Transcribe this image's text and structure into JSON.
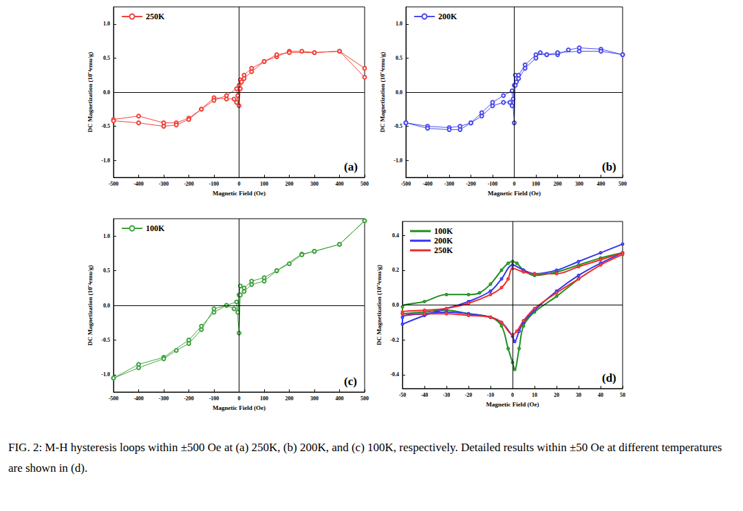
{
  "caption": "FIG. 2: M-H hysteresis loops within ±500 Oe at (a) 250K, (b) 200K, and (c) 100K, respectively. Detailed results within ±50 Oe at different temperatures are shown in (d).",
  "chart_data": [
    {
      "type": "line",
      "annotation": "(a)",
      "x_label": "Magnetic Field (Oe)",
      "y_label": "DC Magnetization (10⁻⁴emu/g)",
      "xlim": [
        -500,
        500
      ],
      "ylim": [
        -1.25,
        1.25
      ],
      "xticks": [
        -500,
        -400,
        -300,
        -200,
        -100,
        0,
        100,
        200,
        300,
        400,
        500
      ],
      "yticks": [
        {
          "value": -1,
          "label": "-1.0"
        },
        -0.5,
        {
          "value": 0,
          "label": "0.0"
        },
        0.5,
        {
          "value": 1,
          "label": "1.0"
        }
      ],
      "grid": false,
      "legend": "upper left",
      "marker": "circle",
      "line_style": "solid",
      "series": [
        {
          "name": "250K",
          "color": "#f0413a",
          "x": [
            500,
            400,
            300,
            250,
            200,
            150,
            100,
            50,
            20,
            5,
            0,
            -5,
            -10,
            -20,
            -50,
            -100,
            -150,
            -200,
            -250,
            -300,
            -400,
            -500,
            -500,
            -400,
            -300,
            -250,
            -200,
            -150,
            -100,
            -50,
            -10,
            0,
            5,
            10,
            20,
            50,
            100,
            150,
            200,
            300,
            400,
            500
          ],
          "values": [
            0.35,
            0.6,
            0.58,
            0.6,
            0.6,
            0.52,
            0.45,
            0.3,
            0.2,
            0.18,
            0.1,
            -0.05,
            -0.15,
            -0.1,
            -0.1,
            -0.08,
            -0.25,
            -0.38,
            -0.45,
            -0.45,
            -0.35,
            -0.4,
            -0.42,
            -0.45,
            -0.5,
            -0.48,
            -0.4,
            -0.25,
            -0.12,
            -0.05,
            0.05,
            -0.2,
            0.05,
            0.15,
            0.25,
            0.35,
            0.45,
            0.55,
            0.58,
            0.58,
            0.6,
            0.22
          ]
        }
      ]
    },
    {
      "type": "line",
      "annotation": "(b)",
      "x_label": "Magnetic Field (Oe)",
      "y_label": "DC Magnetization (10⁻⁴emu/g)",
      "xlim": [
        -500,
        500
      ],
      "ylim": [
        -1.25,
        1.25
      ],
      "xticks": [
        -500,
        -400,
        -300,
        -200,
        -100,
        0,
        100,
        200,
        300,
        400,
        500
      ],
      "yticks": [
        {
          "value": -1,
          "label": "-1.0"
        },
        -0.5,
        {
          "value": 0,
          "label": "0.0"
        },
        0.5,
        {
          "value": 1,
          "label": "1.0"
        }
      ],
      "grid": false,
      "legend": "upper left",
      "marker": "circle",
      "line_style": "solid",
      "series": [
        {
          "name": "200K",
          "color": "#4a4af0",
          "x": [
            500,
            400,
            300,
            250,
            200,
            150,
            120,
            100,
            50,
            20,
            5,
            0,
            -5,
            -10,
            -20,
            -50,
            -100,
            -150,
            -200,
            -250,
            -300,
            -400,
            -500,
            -500,
            -400,
            -300,
            -250,
            -200,
            -150,
            -100,
            -50,
            -10,
            0,
            5,
            10,
            20,
            50,
            100,
            150,
            200,
            300,
            400,
            500
          ],
          "values": [
            0.55,
            0.63,
            0.65,
            0.62,
            0.55,
            0.55,
            0.58,
            0.5,
            0.35,
            0.2,
            0.25,
            0.1,
            -0.1,
            -0.2,
            -0.15,
            -0.15,
            -0.2,
            -0.35,
            -0.45,
            -0.5,
            -0.52,
            -0.5,
            -0.45,
            -0.45,
            -0.53,
            -0.55,
            -0.55,
            -0.45,
            -0.3,
            -0.15,
            -0.05,
            0.02,
            -0.45,
            0.1,
            0.15,
            0.25,
            0.4,
            0.55,
            0.55,
            0.58,
            0.6,
            0.6,
            0.55
          ]
        }
      ]
    },
    {
      "type": "line",
      "annotation": "(c)",
      "x_label": "Magnetic Field (Oe)",
      "y_label": "DC Magnetization (10⁻⁴emu/g)",
      "xlim": [
        -500,
        500
      ],
      "ylim": [
        -1.25,
        1.25
      ],
      "xticks": [
        -500,
        -400,
        -300,
        -200,
        -100,
        0,
        100,
        200,
        300,
        400,
        500
      ],
      "yticks": [
        {
          "value": -1,
          "label": "-1.0"
        },
        -0.5,
        {
          "value": 0,
          "label": "0.0"
        },
        0.5,
        {
          "value": 1,
          "label": "1.0"
        }
      ],
      "grid": false,
      "legend": "upper left",
      "marker": "circle",
      "line_style": "solid",
      "series": [
        {
          "name": "100K",
          "color": "#3fa33f",
          "x": [
            500,
            400,
            300,
            250,
            150,
            100,
            50,
            20,
            5,
            0,
            -5,
            -20,
            -50,
            -100,
            -150,
            -200,
            -300,
            -400,
            -500,
            -500,
            -400,
            -300,
            -250,
            -200,
            -150,
            -100,
            -50,
            -10,
            0,
            5,
            20,
            50,
            100,
            150,
            200,
            250,
            300,
            400,
            500
          ],
          "values": [
            1.22,
            0.88,
            0.78,
            0.74,
            0.5,
            0.4,
            0.35,
            0.25,
            0.28,
            0.15,
            -0.1,
            -0.05,
            0.0,
            -0.1,
            -0.3,
            -0.5,
            -0.75,
            -0.85,
            -1.05,
            -1.05,
            -0.9,
            -0.77,
            -0.65,
            -0.55,
            -0.35,
            -0.05,
            0.0,
            0.05,
            -0.4,
            0.15,
            0.2,
            0.3,
            0.35,
            0.5,
            0.6,
            0.73,
            0.78,
            0.88,
            1.22
          ]
        }
      ]
    },
    {
      "type": "line",
      "annotation": "(d)",
      "x_label": "Magnetic Field (Oe)",
      "y_label": "DC Magnetization (10⁻⁴emu/g)",
      "xlim": [
        -50,
        50
      ],
      "ylim": [
        -0.48,
        0.48
      ],
      "xticks": [
        -50,
        -40,
        -30,
        -20,
        -10,
        0,
        10,
        20,
        30,
        40,
        50
      ],
      "yticks": [
        -0.4,
        -0.2,
        {
          "value": 0,
          "label": "0.0"
        },
        0.2,
        0.4
      ],
      "grid": false,
      "legend": "upper left",
      "marker": "circle",
      "line_style": "solid",
      "series": [
        {
          "name": "100K",
          "color": "#1e8c1e",
          "x": [
            50,
            40,
            30,
            20,
            10,
            5,
            2,
            0,
            -2,
            -5,
            -10,
            -15,
            -20,
            -30,
            -40,
            -50,
            -50,
            -40,
            -30,
            -20,
            -10,
            -5,
            -2,
            0,
            1,
            3,
            5,
            10,
            20,
            30
          ],
          "values": [
            0.3,
            0.27,
            0.23,
            0.19,
            0.17,
            0.2,
            0.24,
            0.25,
            0.24,
            0.2,
            0.12,
            0.07,
            0.06,
            0.06,
            0.02,
            -0.01,
            -0.05,
            -0.04,
            -0.03,
            -0.05,
            -0.07,
            -0.12,
            -0.25,
            -0.33,
            -0.37,
            -0.25,
            -0.12,
            -0.04,
            0.05,
            0.15
          ]
        },
        {
          "name": "200K",
          "color": "#3333ee",
          "x": [
            50,
            40,
            30,
            20,
            10,
            5,
            0,
            -5,
            -10,
            -20,
            -30,
            -40,
            -50,
            -50,
            -40,
            -30,
            -20,
            -10,
            -5,
            0,
            1,
            3,
            5,
            10,
            20,
            30,
            40,
            50
          ],
          "values": [
            0.35,
            0.3,
            0.25,
            0.2,
            0.18,
            0.2,
            0.23,
            0.15,
            0.08,
            0.02,
            -0.02,
            -0.06,
            -0.11,
            -0.07,
            -0.05,
            -0.04,
            -0.05,
            -0.07,
            -0.1,
            -0.18,
            -0.21,
            -0.15,
            -0.1,
            -0.03,
            0.08,
            0.17,
            0.24,
            0.3
          ]
        },
        {
          "name": "250K",
          "color": "#ee2a2a",
          "x": [
            50,
            40,
            30,
            20,
            10,
            5,
            0,
            -2,
            -5,
            -10,
            -20,
            -30,
            -40,
            -50,
            -50,
            -40,
            -30,
            -20,
            -10,
            -5,
            0,
            2,
            5,
            10,
            20,
            30,
            40,
            50
          ],
          "values": [
            0.3,
            0.26,
            0.22,
            0.18,
            0.18,
            0.19,
            0.21,
            0.15,
            0.1,
            0.06,
            0.01,
            -0.02,
            -0.03,
            -0.04,
            -0.05,
            -0.05,
            -0.05,
            -0.06,
            -0.07,
            -0.1,
            -0.17,
            -0.15,
            -0.09,
            -0.02,
            0.07,
            0.15,
            0.23,
            0.29
          ]
        }
      ]
    }
  ]
}
